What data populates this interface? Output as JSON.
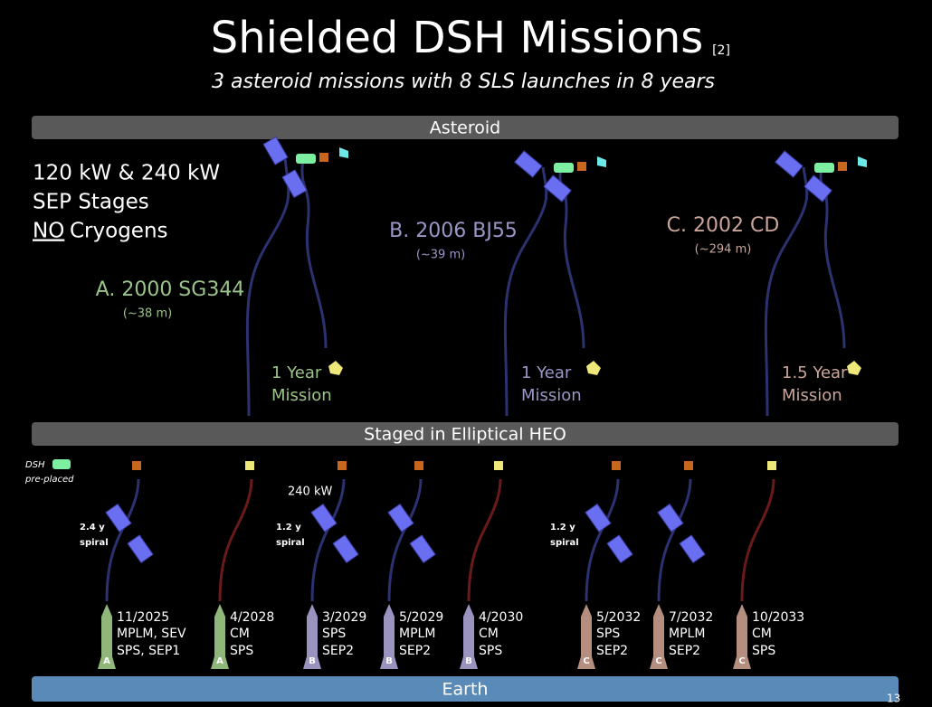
{
  "header": {
    "title": "Shielded DSH Missions",
    "reference": "[2]",
    "subtitle": "3 asteroid missions with 8 SLS launches in 8 years"
  },
  "bands": {
    "asteroid": "Asteroid",
    "heo": "Staged in Elliptical HEO",
    "earth": "Earth"
  },
  "notes": {
    "power": "120 kW & 240 kW",
    "stages": "SEP Stages",
    "no": "NO",
    "cryogens": "Cryogens"
  },
  "missions": [
    {
      "name": "A. 2000 SG344",
      "size": "(~38 m)",
      "duration": "1 Year",
      "duration_unit": "Mission"
    },
    {
      "name": "B. 2006 BJ55",
      "size": "(~39 m)",
      "duration": "1 Year",
      "duration_unit": "Mission"
    },
    {
      "name": "C. 2002 CD",
      "size": "(~294 m)",
      "duration": "1.5 Year",
      "duration_unit": "Mission"
    }
  ],
  "heo_labels": {
    "dsh": "DSH",
    "pre_placed": "pre-placed",
    "spiral_a": "2.4 y",
    "spiral_a_unit": "spiral",
    "power_b": "240 kW",
    "spiral_b": "1.2 y",
    "spiral_b_unit": "spiral",
    "spiral_c": "1.2 y",
    "spiral_c_unit": "spiral"
  },
  "launches": [
    {
      "date": "11/2025",
      "lines": [
        "MPLM, SEV",
        "SPS, SEP1"
      ],
      "mission": "A"
    },
    {
      "date": "4/2028",
      "lines": [
        "CM",
        "SPS"
      ],
      "mission": "A"
    },
    {
      "date": "3/2029",
      "lines": [
        "SPS",
        "SEP2"
      ],
      "mission": "B"
    },
    {
      "date": "5/2029",
      "lines": [
        "MPLM",
        "SEP2"
      ],
      "mission": "B"
    },
    {
      "date": "4/2030",
      "lines": [
        "CM",
        "SPS"
      ],
      "mission": "B"
    },
    {
      "date": "5/2032",
      "lines": [
        "SPS",
        "SEP2"
      ],
      "mission": "C"
    },
    {
      "date": "7/2032",
      "lines": [
        "MPLM",
        "SEP2"
      ],
      "mission": "C"
    },
    {
      "date": "10/2033",
      "lines": [
        "CM",
        "SPS"
      ],
      "mission": "C"
    }
  ],
  "page_number": "13"
}
